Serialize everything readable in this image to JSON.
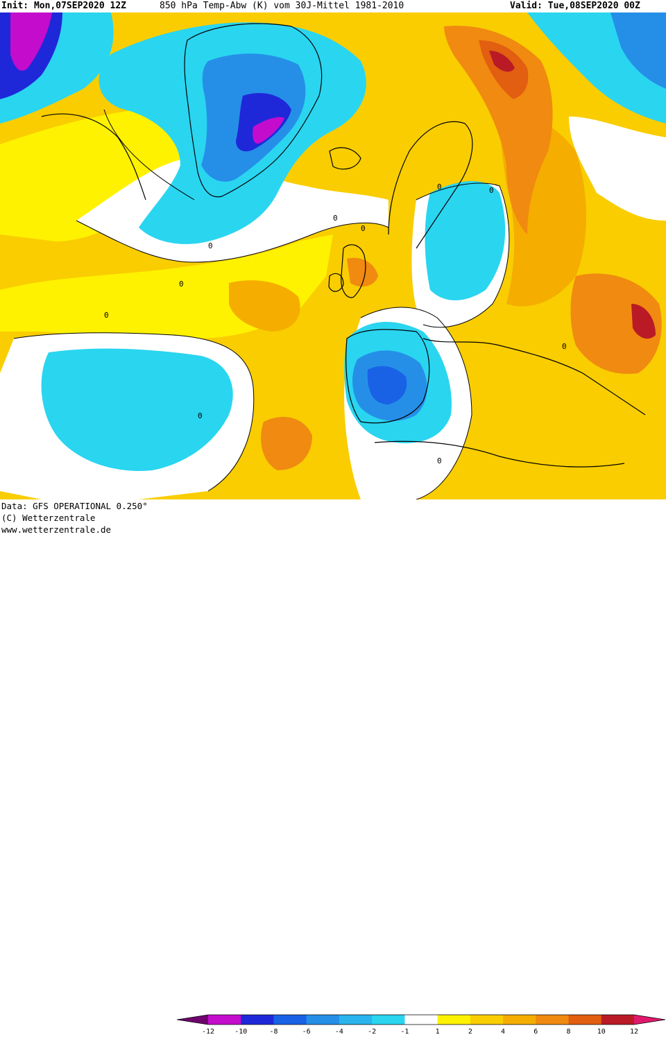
{
  "header": {
    "init": "Init: Mon,07SEP2020 12Z",
    "title": "850 hPa Temp-Abw (K) vom 30J-Mittel 1981-2010",
    "valid": "Valid: Tue,08SEP2020 00Z"
  },
  "footer": {
    "data_source": "Data: GFS OPERATIONAL 0.250°",
    "copyright": "(C) Wetterzentrale",
    "website": "www.wetterzentrale.de"
  },
  "colorbar": {
    "colors": [
      "#70026e",
      "#c40ccd",
      "#1f28d8",
      "#1962e6",
      "#258fe8",
      "#2ab4ee",
      "#2ad5f0",
      "#ffffff",
      "#fff200",
      "#f9cd00",
      "#f5ad00",
      "#f08a10",
      "#e25e10",
      "#ba1a26",
      "#e0196c"
    ],
    "ticks": [
      "-12",
      "-10",
      "-8",
      "-6",
      "-4",
      "-2",
      "-1",
      "1",
      "2",
      "4",
      "6",
      "8",
      "10",
      "12"
    ]
  },
  "palette": {
    "purple": "#c40ccd",
    "blue": "#1f28d8",
    "mid_blue": "#258fe8",
    "cyan": "#2ad5f0",
    "white": "#ffffff",
    "yellow": "#fff200",
    "gold": "#f9cd00",
    "amber": "#f5ad00",
    "orange": "#f08a10",
    "dark_orange": "#e25e10",
    "red": "#ba1a26"
  },
  "contour_labels": [
    "0",
    "0",
    "0",
    "0",
    "0",
    "0",
    "0",
    "0",
    "0",
    "0"
  ]
}
